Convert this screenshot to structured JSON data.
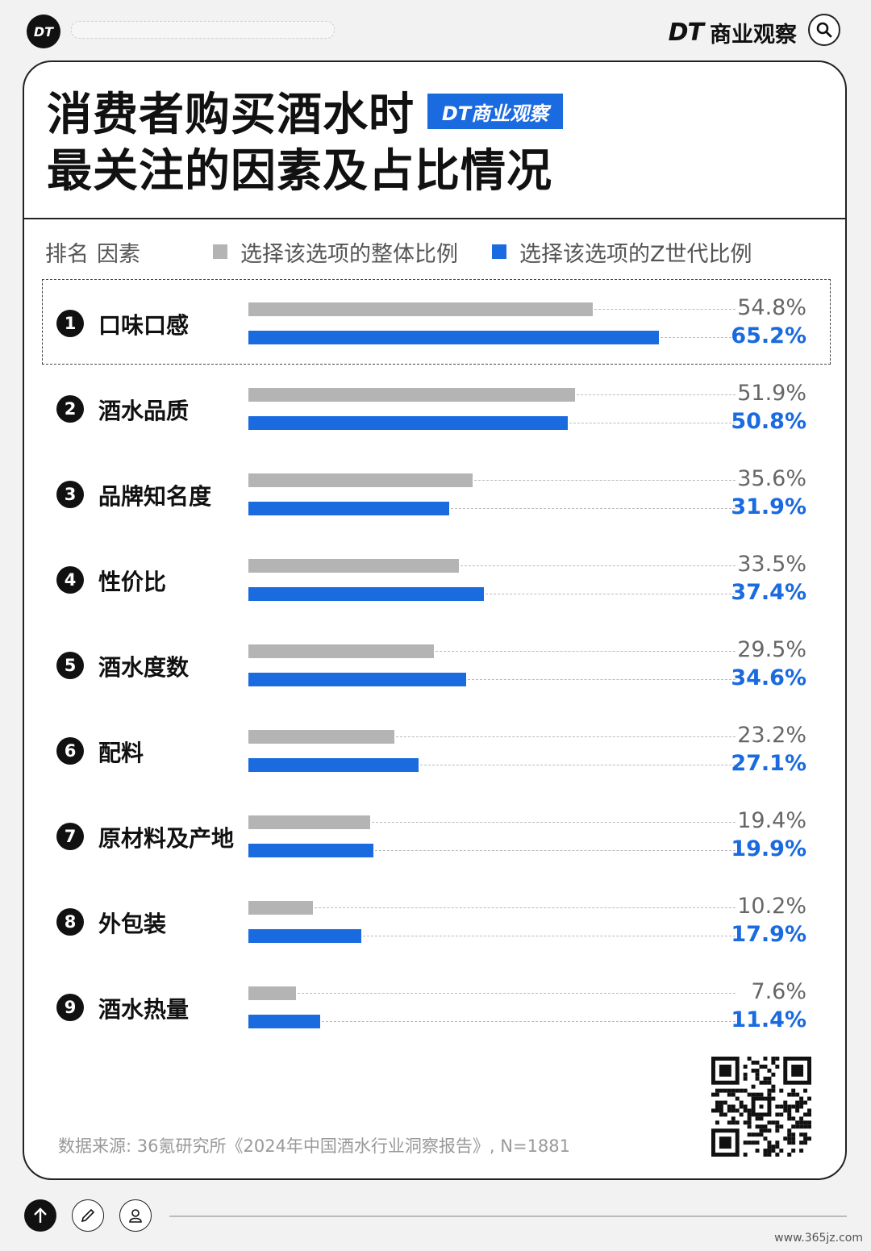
{
  "topbar": {
    "logo_text": "DT",
    "brand_dt": "DT",
    "brand_name": "商业观察",
    "search_icon": "search-icon"
  },
  "title": {
    "line1": "消费者购买酒水时",
    "line2": "最关注的因素及占比情况",
    "badge": "DT商业观察"
  },
  "legend": {
    "rank_header": "排名",
    "factor_header": "因素",
    "overall_label": "选择该选项的整体比例",
    "genz_label": "选择该选项的Z世代比例"
  },
  "colors": {
    "overall": "#b4b4b4",
    "genz": "#1a6ae0"
  },
  "chart_data": {
    "type": "bar",
    "orientation": "horizontal",
    "title": "消费者购买酒水时最关注的因素及占比情况",
    "ranks": [
      "1",
      "2",
      "3",
      "4",
      "5",
      "6",
      "7",
      "8",
      "9"
    ],
    "categories": [
      "口味口感",
      "酒水品质",
      "品牌知名度",
      "性价比",
      "酒水度数",
      "配料",
      "原材料及产地",
      "外包装",
      "酒水热量"
    ],
    "series": [
      {
        "name": "选择该选项的整体比例",
        "values": [
          54.8,
          51.9,
          35.6,
          33.5,
          29.5,
          23.2,
          19.4,
          10.2,
          7.6
        ],
        "labels": [
          "54.8%",
          "51.9%",
          "35.6%",
          "33.5%",
          "29.5%",
          "23.2%",
          "19.4%",
          "10.2%",
          "7.6%"
        ]
      },
      {
        "name": "选择该选项的Z世代比例",
        "values": [
          65.2,
          50.8,
          31.9,
          37.4,
          34.6,
          27.1,
          19.9,
          17.9,
          11.4
        ],
        "labels": [
          "65.2%",
          "50.8%",
          "31.9%",
          "37.4%",
          "34.6%",
          "27.1%",
          "19.9%",
          "17.9%",
          "11.4%"
        ]
      }
    ],
    "highlighted_category": "口味口感",
    "legend_position": "top"
  },
  "source": "数据来源: 36氪研究所《2024年中国酒水行业洞察报告》, N=1881",
  "footer": {
    "url": "www.365jz.com"
  }
}
